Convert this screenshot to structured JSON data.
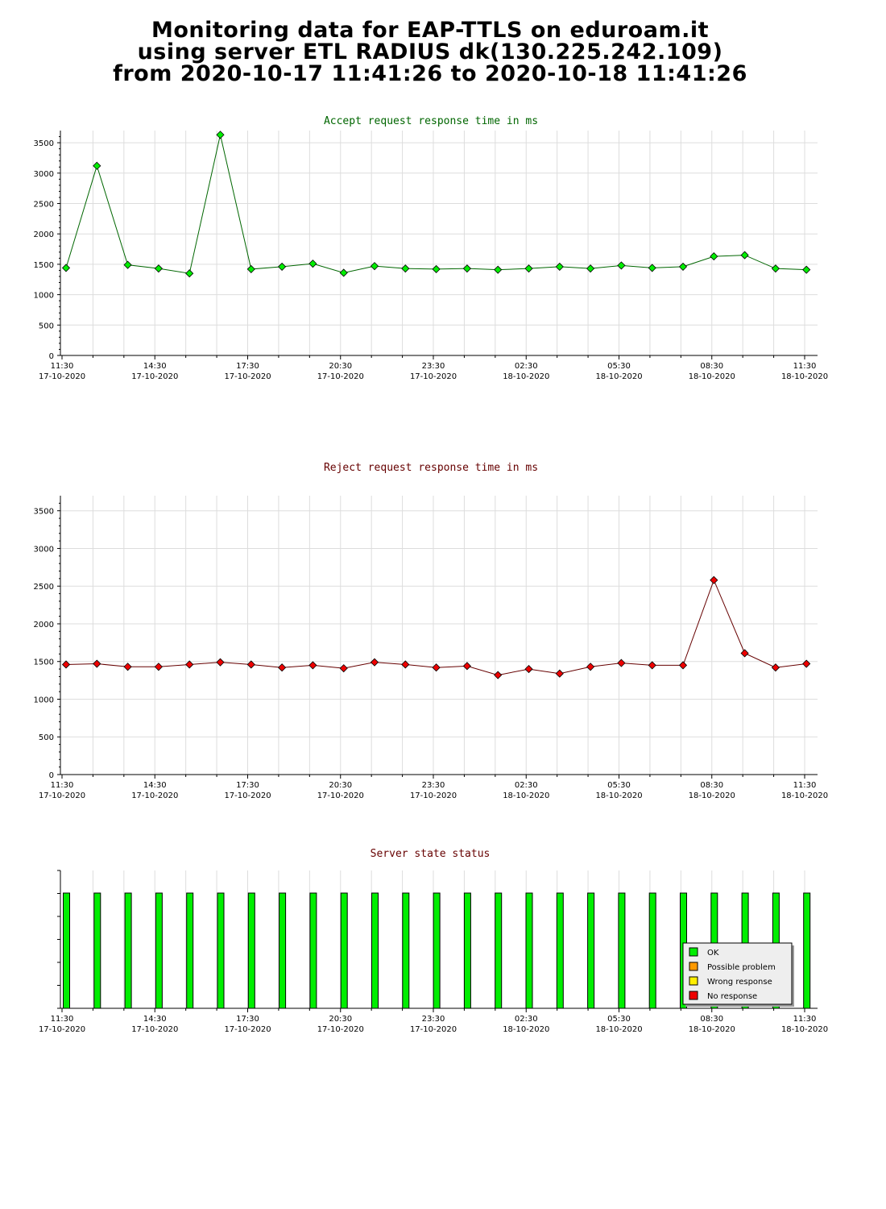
{
  "page": {
    "title_lines": [
      "Monitoring data for EAP-TTLS on eduroam.it",
      "using server ETL RADIUS dk(130.225.242.109)",
      "from 2020-10-17 11:41:26 to 2020-10-18 11:41:26"
    ]
  },
  "chart_data": [
    {
      "type": "line",
      "title": "Accept request response time in ms",
      "title_color": "#006600",
      "line_color": "#006600",
      "marker_color": "#00ee00",
      "grid": true,
      "ylim": [
        0,
        3700
      ],
      "yticks": [
        0,
        500,
        1000,
        1500,
        2000,
        2500,
        3000,
        3500
      ],
      "x_tick_labels": [
        [
          "11:30",
          "17-10-2020"
        ],
        [
          "14:30",
          "17-10-2020"
        ],
        [
          "17:30",
          "17-10-2020"
        ],
        [
          "20:30",
          "17-10-2020"
        ],
        [
          "23:30",
          "17-10-2020"
        ],
        [
          "02:30",
          "18-10-2020"
        ],
        [
          "05:30",
          "18-10-2020"
        ],
        [
          "08:30",
          "18-10-2020"
        ],
        [
          "11:30",
          "18-10-2020"
        ]
      ],
      "x": [
        "11:41",
        "12:41",
        "13:41",
        "14:41",
        "15:41",
        "16:41",
        "17:41",
        "18:41",
        "19:41",
        "20:41",
        "21:41",
        "22:41",
        "23:41",
        "00:41",
        "01:41",
        "02:41",
        "03:41",
        "04:41",
        "05:41",
        "06:41",
        "07:41",
        "08:41",
        "09:41",
        "10:41",
        "11:41"
      ],
      "series": [
        {
          "values": [
            1440,
            3120,
            1490,
            1430,
            1350,
            3630,
            1420,
            1460,
            1510,
            1360,
            1470,
            1430,
            1420,
            1430,
            1410,
            1430,
            1460,
            1430,
            1480,
            1440,
            1460,
            1630,
            1650,
            1430,
            1410
          ]
        }
      ]
    },
    {
      "type": "line",
      "title": "Reject request response time in ms",
      "title_color": "#660000",
      "line_color": "#660000",
      "marker_color": "#ee0000",
      "grid": true,
      "ylim": [
        0,
        3700
      ],
      "yticks": [
        0,
        500,
        1000,
        1500,
        2000,
        2500,
        3000,
        3500
      ],
      "x_tick_labels": [
        [
          "11:30",
          "17-10-2020"
        ],
        [
          "14:30",
          "17-10-2020"
        ],
        [
          "17:30",
          "17-10-2020"
        ],
        [
          "20:30",
          "17-10-2020"
        ],
        [
          "23:30",
          "17-10-2020"
        ],
        [
          "02:30",
          "18-10-2020"
        ],
        [
          "05:30",
          "18-10-2020"
        ],
        [
          "08:30",
          "18-10-2020"
        ],
        [
          "11:30",
          "18-10-2020"
        ]
      ],
      "x": [
        "11:41",
        "12:41",
        "13:41",
        "14:41",
        "15:41",
        "16:41",
        "17:41",
        "18:41",
        "19:41",
        "20:41",
        "21:41",
        "22:41",
        "23:41",
        "00:41",
        "01:41",
        "02:41",
        "03:41",
        "04:41",
        "05:41",
        "06:41",
        "07:41",
        "08:41",
        "09:41",
        "10:41",
        "11:41"
      ],
      "series": [
        {
          "values": [
            1460,
            1470,
            1430,
            1430,
            1460,
            1490,
            1460,
            1420,
            1450,
            1410,
            1490,
            1460,
            1420,
            1440,
            1320,
            1400,
            1340,
            1430,
            1480,
            1450,
            1450,
            2580,
            1610,
            1420,
            1470
          ]
        }
      ]
    },
    {
      "type": "bar",
      "title": "Server state status",
      "title_color": "#660000",
      "grid": true,
      "x_tick_labels": [
        [
          "11:30",
          "17-10-2020"
        ],
        [
          "14:30",
          "17-10-2020"
        ],
        [
          "17:30",
          "17-10-2020"
        ],
        [
          "20:30",
          "17-10-2020"
        ],
        [
          "23:30",
          "17-10-2020"
        ],
        [
          "02:30",
          "18-10-2020"
        ],
        [
          "05:30",
          "18-10-2020"
        ],
        [
          "08:30",
          "18-10-2020"
        ],
        [
          "11:30",
          "18-10-2020"
        ]
      ],
      "x": [
        "11:41",
        "12:41",
        "13:41",
        "14:41",
        "15:41",
        "16:41",
        "17:41",
        "18:41",
        "19:41",
        "20:41",
        "21:41",
        "22:41",
        "23:41",
        "00:41",
        "01:41",
        "02:41",
        "03:41",
        "04:41",
        "05:41",
        "06:41",
        "07:41",
        "08:41",
        "09:41",
        "10:41",
        "11:41"
      ],
      "states": [
        "OK",
        "OK",
        "OK",
        "OK",
        "OK",
        "OK",
        "OK",
        "OK",
        "OK",
        "OK",
        "OK",
        "OK",
        "OK",
        "OK",
        "OK",
        "OK",
        "OK",
        "OK",
        "OK",
        "OK",
        "OK",
        "OK",
        "OK",
        "OK",
        "OK"
      ],
      "legend_position": "bottom-right",
      "legend": [
        {
          "label": "OK",
          "color": "#00ee00"
        },
        {
          "label": "Possible problem",
          "color": "#ff9900"
        },
        {
          "label": "Wrong response",
          "color": "#ffee00"
        },
        {
          "label": "No response",
          "color": "#ee0000"
        }
      ]
    }
  ]
}
